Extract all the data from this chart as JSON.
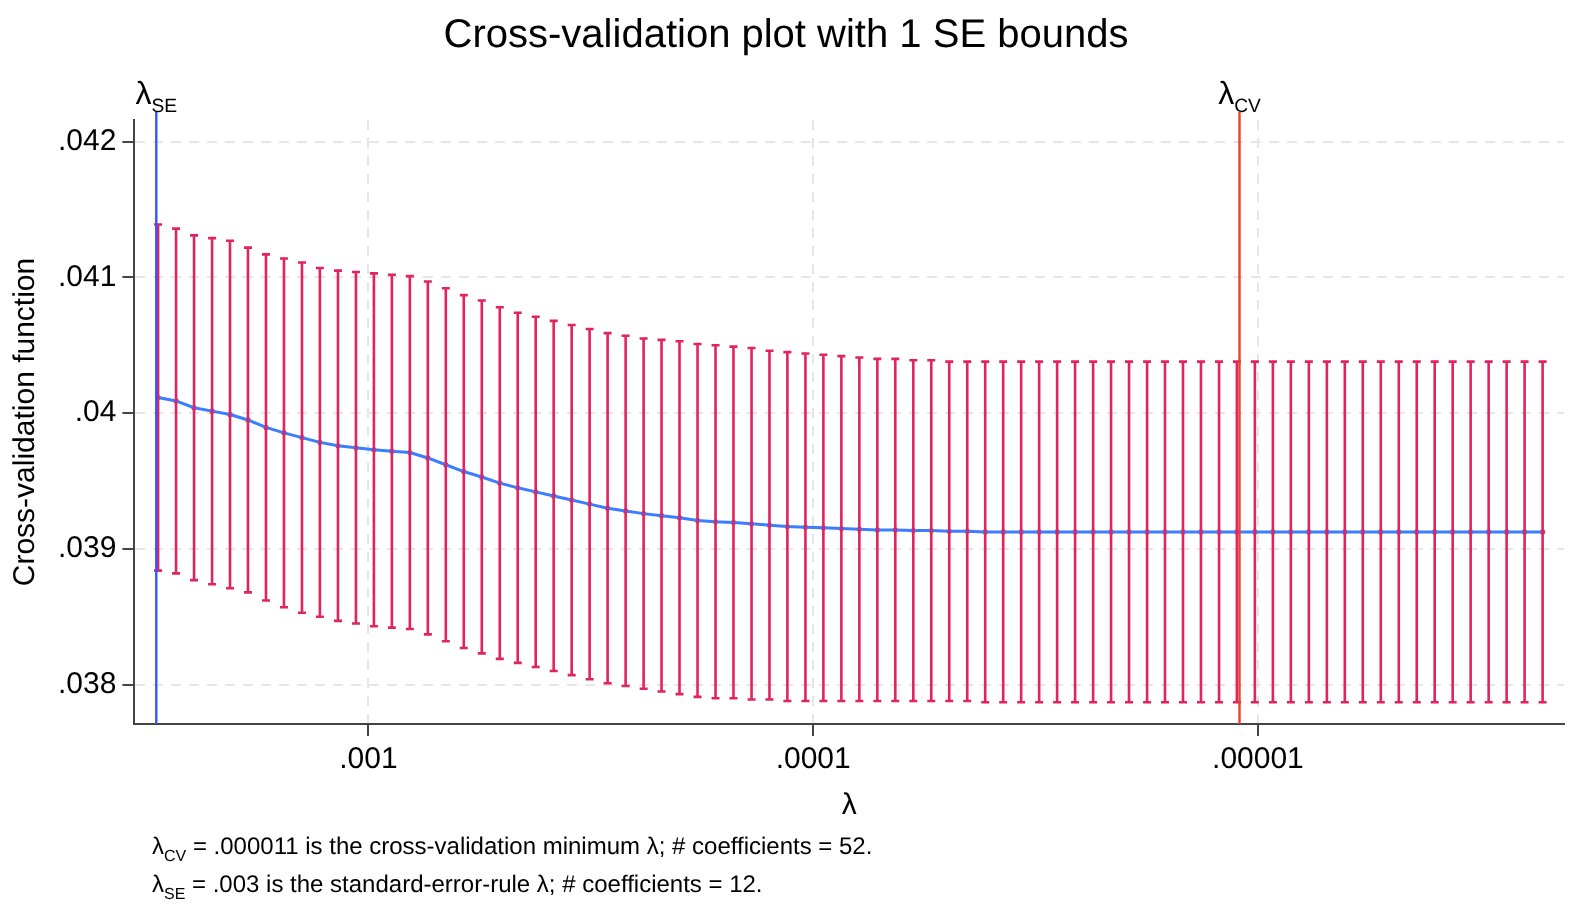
{
  "chart_data": {
    "type": "line",
    "title": "Cross-validation plot with 1 SE bounds",
    "xlabel": "λ",
    "ylabel": "Cross-validation function",
    "log": "x",
    "grid": true,
    "xlim": [
      0.00336,
      2.05e-06
    ],
    "xticks": [
      {
        "value": 0.001,
        "label": ".001"
      },
      {
        "value": 0.0001,
        "label": ".0001"
      },
      {
        "value": 1e-05,
        "label": ".00001"
      }
    ],
    "ylim": [
      0.03771,
      0.04216
    ],
    "yticks": [
      {
        "value": 0.038,
        "label": ".038"
      },
      {
        "value": 0.039,
        "label": ".039"
      },
      {
        "value": 0.04,
        "label": ".04"
      },
      {
        "value": 0.041,
        "label": ".041"
      },
      {
        "value": 0.042,
        "label": ".042"
      }
    ],
    "x": [
      0.002972,
      0.002708,
      0.002467,
      0.002247,
      0.002048,
      0.001866,
      0.0017,
      0.001549,
      0.001411,
      0.001286,
      0.001171,
      0.001067,
      0.0009723,
      0.0008859,
      0.0008072,
      0.0007354,
      0.00067,
      0.0006105,
      0.0005562,
      0.0005067,
      0.0004617,
      0.0004207,
      0.0003833,
      0.0003492,
      0.0003182,
      0.0002899,
      0.0002641,
      0.0002406,
      0.0002193,
      0.0001998,
      0.000182,
      0.0001658,
      0.0001511,
      0.0001376,
      0.0001254,
      0.0001143,
      0.0001041,
      9.486e-05,
      8.643e-05,
      7.874e-05,
      7.174e-05,
      6.537e-05,
      5.955e-05,
      5.426e-05,
      4.944e-05,
      4.504e-05,
      4.104e-05,
      3.739e-05,
      3.407e-05,
      3.104e-05,
      2.828e-05,
      2.577e-05,
      2.347e-05,
      2.139e-05,
      1.949e-05,
      1.775e-05,
      1.618e-05,
      1.474e-05,
      1.343e-05,
      1.223e-05,
      1.115e-05,
      1.016e-05,
      9.254e-06,
      8.432e-06,
      7.682e-06,
      6.998e-06,
      6.377e-06,
      5.81e-06,
      5.293e-06,
      4.822e-06,
      4.394e-06,
      4.004e-06,
      3.648e-06,
      3.324e-06,
      3.028e-06,
      2.759e-06,
      2.514e-06,
      2.29e-06
    ],
    "series": [
      {
        "color": "#3a7dff",
        "values": [
          0.040115,
          0.04009,
          0.04004,
          0.040015,
          0.03999,
          0.03995,
          0.039895,
          0.039855,
          0.03982,
          0.039785,
          0.03976,
          0.039745,
          0.03973,
          0.03972,
          0.03971,
          0.03967,
          0.03962,
          0.03957,
          0.03953,
          0.039485,
          0.03945,
          0.03942,
          0.03939,
          0.03936,
          0.03933,
          0.0393,
          0.03928,
          0.03926,
          0.039245,
          0.03923,
          0.03921,
          0.0392,
          0.039195,
          0.039185,
          0.039175,
          0.039165,
          0.03916,
          0.039155,
          0.03915,
          0.039145,
          0.03914,
          0.03914,
          0.039135,
          0.039135,
          0.03913,
          0.03913,
          0.039125,
          0.039125,
          0.039125,
          0.039125,
          0.039125,
          0.039125,
          0.039125,
          0.039125,
          0.039125,
          0.039125,
          0.039125,
          0.039125,
          0.039125,
          0.039125,
          0.039125,
          0.039125,
          0.039125,
          0.039125,
          0.039125,
          0.039125,
          0.039125,
          0.039125,
          0.039125,
          0.039125,
          0.039125,
          0.039125,
          0.039125,
          0.039125,
          0.039125,
          0.039125,
          0.039125,
          0.039125
        ]
      },
      {
        "type": "scatter",
        "color": "#e0245e",
        "values": [
          0.040115,
          0.04009,
          0.04004,
          0.040015,
          0.03999,
          0.03995,
          0.039895,
          0.039855,
          0.03982,
          0.039785,
          0.03976,
          0.039745,
          0.03973,
          0.03972,
          0.03971,
          0.03967,
          0.03962,
          0.03957,
          0.03953,
          0.039485,
          0.03945,
          0.03942,
          0.03939,
          0.03936,
          0.03933,
          0.0393,
          0.03928,
          0.03926,
          0.039245,
          0.03923,
          0.03921,
          0.0392,
          0.039195,
          0.039185,
          0.039175,
          0.039165,
          0.03916,
          0.039155,
          0.03915,
          0.039145,
          0.03914,
          0.03914,
          0.039135,
          0.039135,
          0.03913,
          0.03913,
          0.039125,
          0.039125,
          0.039125,
          0.039125,
          0.039125,
          0.039125,
          0.039125,
          0.039125,
          0.039125,
          0.039125,
          0.039125,
          0.039125,
          0.039125,
          0.039125,
          0.039125,
          0.039125,
          0.039125,
          0.039125,
          0.039125,
          0.039125,
          0.039125,
          0.039125,
          0.039125,
          0.039125,
          0.039125,
          0.039125,
          0.039125,
          0.039125,
          0.039125,
          0.039125,
          0.039125,
          0.039125
        ],
        "errors": [
          [
            0.03884,
            0.04139
          ],
          [
            0.03882,
            0.04136
          ],
          [
            0.03877,
            0.04131
          ],
          [
            0.03874,
            0.04129
          ],
          [
            0.03871,
            0.04127
          ],
          [
            0.03868,
            0.04122
          ],
          [
            0.03862,
            0.04117
          ],
          [
            0.03857,
            0.04114
          ],
          [
            0.03853,
            0.04111
          ],
          [
            0.0385,
            0.04107
          ],
          [
            0.03847,
            0.04105
          ],
          [
            0.03845,
            0.04104
          ],
          [
            0.03843,
            0.04103
          ],
          [
            0.03842,
            0.04102
          ],
          [
            0.03841,
            0.04101
          ],
          [
            0.03837,
            0.04097
          ],
          [
            0.03832,
            0.04092
          ],
          [
            0.03827,
            0.04087
          ],
          [
            0.03823,
            0.04083
          ],
          [
            0.03819,
            0.04078
          ],
          [
            0.03816,
            0.04074
          ],
          [
            0.03813,
            0.04071
          ],
          [
            0.0381,
            0.04068
          ],
          [
            0.03807,
            0.04065
          ],
          [
            0.03804,
            0.04062
          ],
          [
            0.03801,
            0.04059
          ],
          [
            0.03799,
            0.04057
          ],
          [
            0.03797,
            0.04055
          ],
          [
            0.03795,
            0.04054
          ],
          [
            0.03793,
            0.04053
          ],
          [
            0.03791,
            0.04051
          ],
          [
            0.0379,
            0.0405
          ],
          [
            0.0379,
            0.04049
          ],
          [
            0.03789,
            0.04048
          ],
          [
            0.03789,
            0.04046
          ],
          [
            0.03788,
            0.04045
          ],
          [
            0.03788,
            0.04044
          ],
          [
            0.03788,
            0.04043
          ],
          [
            0.03788,
            0.04042
          ],
          [
            0.03788,
            0.04041
          ],
          [
            0.03788,
            0.0404
          ],
          [
            0.03788,
            0.0404
          ],
          [
            0.03788,
            0.04039
          ],
          [
            0.03788,
            0.04039
          ],
          [
            0.03788,
            0.04038
          ],
          [
            0.03788,
            0.04038
          ],
          [
            0.03787,
            0.04038
          ],
          [
            0.03787,
            0.04038
          ],
          [
            0.03787,
            0.04038
          ],
          [
            0.03787,
            0.04038
          ],
          [
            0.03787,
            0.04038
          ],
          [
            0.03787,
            0.04038
          ],
          [
            0.03787,
            0.04038
          ],
          [
            0.03787,
            0.04038
          ],
          [
            0.03787,
            0.04038
          ],
          [
            0.03787,
            0.04038
          ],
          [
            0.03787,
            0.04038
          ],
          [
            0.03787,
            0.04038
          ],
          [
            0.03787,
            0.04038
          ],
          [
            0.03787,
            0.04038
          ],
          [
            0.03787,
            0.04038
          ],
          [
            0.03787,
            0.04038
          ],
          [
            0.03787,
            0.04038
          ],
          [
            0.03787,
            0.04038
          ],
          [
            0.03787,
            0.04038
          ],
          [
            0.03787,
            0.04038
          ],
          [
            0.03787,
            0.04038
          ],
          [
            0.03787,
            0.04038
          ],
          [
            0.03787,
            0.04038
          ],
          [
            0.03787,
            0.04038
          ],
          [
            0.03787,
            0.04038
          ],
          [
            0.03787,
            0.04038
          ],
          [
            0.03787,
            0.04038
          ],
          [
            0.03787,
            0.04038
          ],
          [
            0.03787,
            0.04038
          ],
          [
            0.03787,
            0.04038
          ],
          [
            0.03787,
            0.04038
          ],
          [
            0.03787,
            0.04038
          ]
        ]
      }
    ],
    "ref_lines": [
      {
        "axis": "x",
        "value": 0.003,
        "label": "λ$_{SE}$",
        "color": "#3355ff"
      },
      {
        "axis": "x",
        "value": 1.1e-05,
        "label": "λ$_{CV}$",
        "color": "#e8402a"
      }
    ],
    "annotations": [
      "λ$_{CV}$ = .000011 is the cross-validation minimum λ; # coefficients = 52.",
      "λ$_{SE}$ = .003 is the standard-error-rule λ; # coefficients = 12."
    ]
  }
}
